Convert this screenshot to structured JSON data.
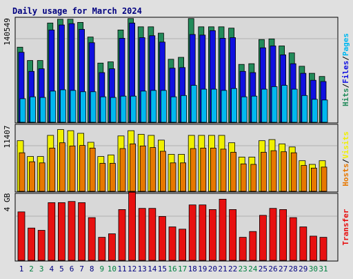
{
  "chart_data": [
    {
      "type": "bar",
      "title": "Daily usage for March 2024",
      "categories": [
        "1",
        "2",
        "3",
        "4",
        "5",
        "6",
        "7",
        "8",
        "9",
        "10",
        "11",
        "12",
        "13",
        "14",
        "15",
        "16",
        "17",
        "18",
        "19",
        "20",
        "21",
        "22",
        "23",
        "24",
        "25",
        "26",
        "27",
        "28",
        "29",
        "30",
        "31"
      ],
      "ylabel": "Hits/Files/Pages",
      "y_tick_label": "140549",
      "ylim": [
        0,
        165000
      ],
      "series": [
        {
          "name": "Hits",
          "color": "#228B5A",
          "values": [
            118000,
            97000,
            97000,
            156000,
            162000,
            162000,
            157000,
            134000,
            93000,
            95000,
            145000,
            163000,
            150000,
            150000,
            140000,
            99000,
            102000,
            163000,
            150000,
            150000,
            150000,
            148000,
            91000,
            92000,
            130000,
            131000,
            120000,
            109000,
            88000,
            77000,
            72000
          ]
        },
        {
          "name": "Files",
          "color": "#1010e0",
          "values": [
            110000,
            80000,
            84000,
            145000,
            153000,
            155000,
            146000,
            125000,
            78000,
            84000,
            132000,
            156000,
            133000,
            136000,
            126000,
            85000,
            86000,
            138000,
            137000,
            144000,
            132000,
            133000,
            80000,
            78000,
            117000,
            120000,
            106000,
            92000,
            77000,
            66000,
            64000
          ]
        },
        {
          "name": "Pages",
          "color": "#00B8F0",
          "values": [
            37000,
            40000,
            39000,
            49000,
            51000,
            50000,
            48000,
            48000,
            40000,
            39000,
            41000,
            41000,
            49000,
            50000,
            50000,
            40000,
            42000,
            58000,
            52000,
            52000,
            50000,
            53000,
            40000,
            41000,
            52000,
            56000,
            58000,
            52000,
            42000,
            36000,
            35000
          ]
        }
      ],
      "legend_position": "right",
      "grid": true
    },
    {
      "type": "bar",
      "categories": [
        "1",
        "2",
        "3",
        "4",
        "5",
        "6",
        "7",
        "8",
        "9",
        "10",
        "11",
        "12",
        "13",
        "14",
        "15",
        "16",
        "17",
        "18",
        "19",
        "20",
        "21",
        "22",
        "23",
        "24",
        "25",
        "26",
        "27",
        "28",
        "29",
        "30",
        "31"
      ],
      "ylabel": "Hosts/Visits",
      "y_tick_label": "11407",
      "ylim": [
        0,
        12700
      ],
      "series": [
        {
          "name": "Visits",
          "color": "#F0F000",
          "values": [
            9600,
            6600,
            6600,
            10600,
            11700,
            11500,
            11000,
            9300,
            6600,
            6900,
            10500,
            11500,
            10800,
            10600,
            9700,
            7000,
            7000,
            10600,
            10600,
            10600,
            10600,
            9200,
            6500,
            6500,
            9600,
            9800,
            9000,
            8400,
            5800,
            5100,
            5800
          ]
        },
        {
          "name": "Hosts",
          "color": "#E87800",
          "values": [
            7300,
            5600,
            5400,
            8200,
            9200,
            8600,
            8700,
            8200,
            5300,
            5300,
            8100,
            9000,
            8600,
            8300,
            7600,
            5400,
            5400,
            8100,
            8200,
            8200,
            8000,
            7400,
            5200,
            5100,
            7400,
            7700,
            7500,
            7300,
            4900,
            4400,
            4600
          ]
        }
      ],
      "legend_position": "right",
      "grid": true
    },
    {
      "type": "bar",
      "categories": [
        "1",
        "2",
        "3",
        "4",
        "5",
        "6",
        "7",
        "8",
        "9",
        "10",
        "11",
        "12",
        "13",
        "14",
        "15",
        "16",
        "17",
        "18",
        "19",
        "20",
        "21",
        "22",
        "23",
        "24",
        "25",
        "26",
        "27",
        "28",
        "29",
        "30",
        "31"
      ],
      "ylabel": "Transfer",
      "y_tick_label": "4 GB",
      "ylim": [
        0,
        5.8
      ],
      "series": [
        {
          "name": "Transfer",
          "color": "#E81010",
          "values": [
            4.2,
            2.8,
            2.6,
            5.0,
            5.0,
            5.1,
            5.0,
            3.7,
            2.0,
            2.3,
            4.4,
            5.9,
            4.5,
            4.5,
            3.8,
            2.9,
            2.7,
            4.8,
            4.8,
            4.4,
            5.3,
            4.4,
            2.0,
            2.5,
            3.9,
            4.5,
            4.4,
            3.7,
            2.9,
            2.1,
            2.0
          ]
        }
      ],
      "legend_position": "right",
      "grid": true
    }
  ],
  "day_label_colors": {
    "weekday": "#000080",
    "weekend": "#008040"
  },
  "weekend_days": [
    "2",
    "3",
    "9",
    "10",
    "16",
    "17",
    "23",
    "24",
    "30",
    "31"
  ]
}
